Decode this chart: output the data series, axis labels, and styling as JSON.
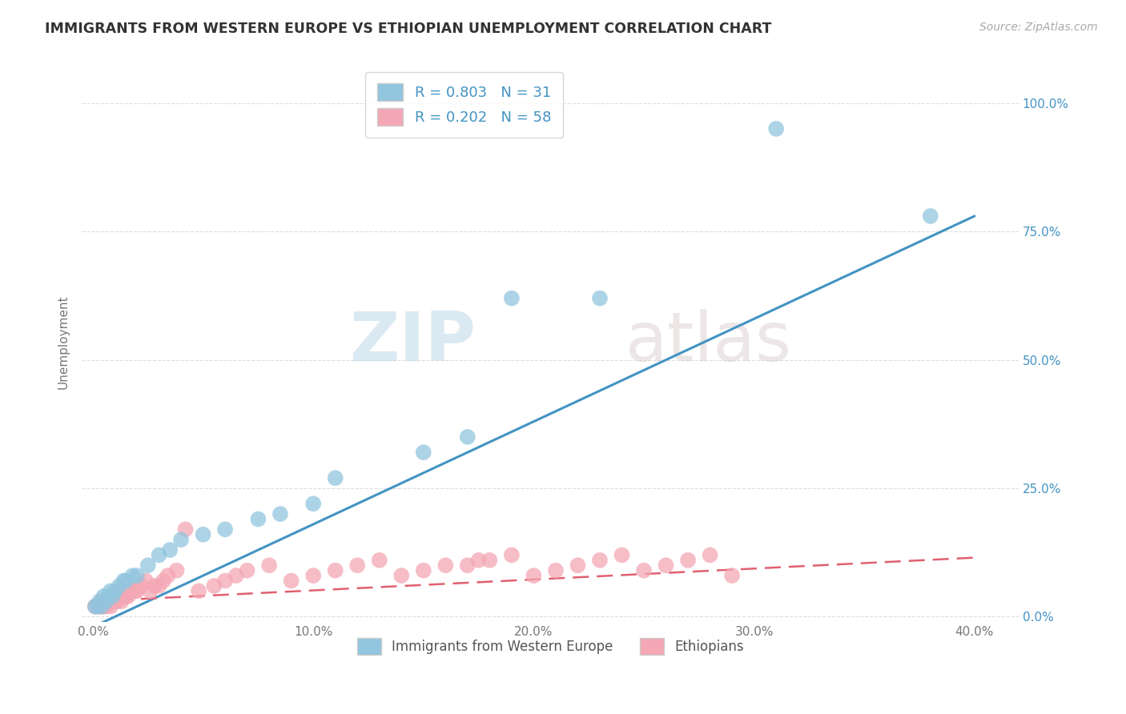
{
  "title": "IMMIGRANTS FROM WESTERN EUROPE VS ETHIOPIAN UNEMPLOYMENT CORRELATION CHART",
  "source": "Source: ZipAtlas.com",
  "xlabel": "",
  "ylabel": "Unemployment",
  "xlim": [
    -0.005,
    0.42
  ],
  "ylim": [
    -0.01,
    1.08
  ],
  "yticks": [
    0.0,
    0.25,
    0.5,
    0.75,
    1.0
  ],
  "ytick_labels_right": [
    "0.0%",
    "25.0%",
    "50.0%",
    "75.0%",
    "100.0%"
  ],
  "xticks": [
    0.0,
    0.1,
    0.2,
    0.3,
    0.4
  ],
  "xtick_labels": [
    "0.0%",
    "10.0%",
    "20.0%",
    "30.0%",
    "40.0%"
  ],
  "blue_R": 0.803,
  "blue_N": 31,
  "pink_R": 0.202,
  "pink_N": 58,
  "blue_color": "#92c5de",
  "pink_color": "#f4a7b4",
  "blue_line_color": "#4393c3",
  "pink_line_color": "#e06070",
  "legend_label_blue": "Immigrants from Western Europe",
  "legend_label_pink": "Ethiopians",
  "watermark": "ZIPatlas",
  "background_color": "#ffffff",
  "blue_scatter_x": [
    0.001,
    0.002,
    0.003,
    0.004,
    0.005,
    0.006,
    0.007,
    0.008,
    0.009,
    0.01,
    0.012,
    0.014,
    0.015,
    0.018,
    0.02,
    0.025,
    0.03,
    0.035,
    0.04,
    0.05,
    0.06,
    0.075,
    0.085,
    0.1,
    0.11,
    0.15,
    0.17,
    0.19,
    0.23,
    0.31,
    0.38
  ],
  "blue_scatter_y": [
    0.02,
    0.02,
    0.03,
    0.02,
    0.04,
    0.03,
    0.04,
    0.05,
    0.04,
    0.05,
    0.06,
    0.07,
    0.07,
    0.08,
    0.08,
    0.1,
    0.12,
    0.13,
    0.15,
    0.16,
    0.17,
    0.19,
    0.2,
    0.22,
    0.27,
    0.32,
    0.35,
    0.62,
    0.62,
    0.95,
    0.78
  ],
  "pink_scatter_x": [
    0.001,
    0.002,
    0.003,
    0.004,
    0.004,
    0.005,
    0.006,
    0.007,
    0.008,
    0.009,
    0.01,
    0.011,
    0.012,
    0.013,
    0.014,
    0.015,
    0.016,
    0.017,
    0.018,
    0.019,
    0.02,
    0.022,
    0.024,
    0.026,
    0.028,
    0.03,
    0.032,
    0.034,
    0.038,
    0.042,
    0.048,
    0.055,
    0.06,
    0.065,
    0.07,
    0.08,
    0.09,
    0.1,
    0.11,
    0.12,
    0.13,
    0.14,
    0.15,
    0.16,
    0.17,
    0.175,
    0.18,
    0.19,
    0.2,
    0.21,
    0.22,
    0.23,
    0.24,
    0.25,
    0.26,
    0.27,
    0.28,
    0.29
  ],
  "pink_scatter_y": [
    0.02,
    0.02,
    0.02,
    0.02,
    0.03,
    0.02,
    0.02,
    0.03,
    0.02,
    0.03,
    0.03,
    0.03,
    0.04,
    0.03,
    0.04,
    0.04,
    0.04,
    0.05,
    0.05,
    0.05,
    0.05,
    0.06,
    0.07,
    0.05,
    0.06,
    0.06,
    0.07,
    0.08,
    0.09,
    0.17,
    0.05,
    0.06,
    0.07,
    0.08,
    0.09,
    0.1,
    0.07,
    0.08,
    0.09,
    0.1,
    0.11,
    0.08,
    0.09,
    0.1,
    0.1,
    0.11,
    0.11,
    0.12,
    0.08,
    0.09,
    0.1,
    0.11,
    0.12,
    0.09,
    0.1,
    0.11,
    0.12,
    0.08
  ],
  "blue_trend_x": [
    0.0,
    0.4
  ],
  "blue_trend_y": [
    -0.02,
    0.78
  ],
  "pink_trend_x": [
    0.0,
    0.4
  ],
  "pink_trend_y": [
    0.03,
    0.115
  ]
}
